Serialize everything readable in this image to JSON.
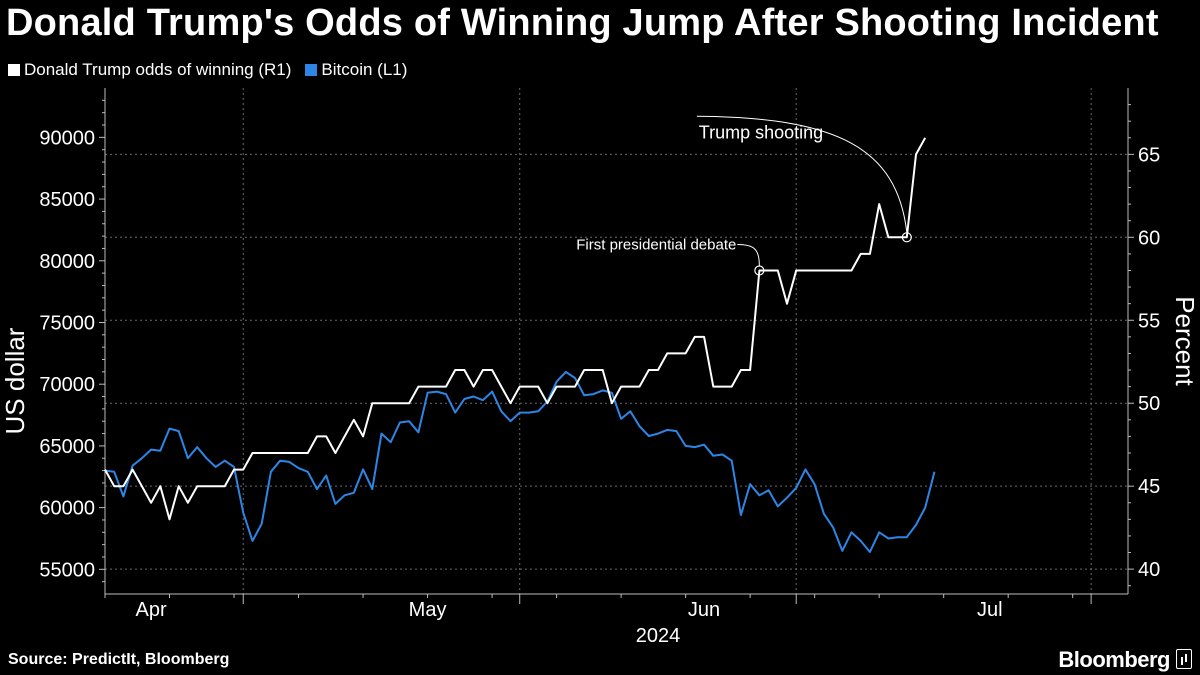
{
  "chart_data": {
    "type": "line",
    "title": "Donald Trump's Odds of Winning Jump After Shooting Incident",
    "legend": [
      {
        "name": "Donald Trump odds of winning (R1)",
        "color": "#ffffff"
      },
      {
        "name": "Bitcoin (L1)",
        "color": "#2d86e6"
      }
    ],
    "xlabel": "2024",
    "x_ticks": [
      "Apr",
      "May",
      "Jun",
      "Jul"
    ],
    "x_tick_days": [
      5,
      35,
      65,
      96
    ],
    "x_month_boundaries": [
      15,
      45,
      75,
      107
    ],
    "x_range": [
      0,
      111
    ],
    "left_axis": {
      "label": "US dollar",
      "ticks": [
        55000,
        60000,
        65000,
        70000,
        75000,
        80000,
        85000,
        90000
      ],
      "range": [
        53000,
        94000
      ]
    },
    "right_axis": {
      "label": "Percent",
      "ticks": [
        40,
        45,
        50,
        55,
        60,
        65
      ],
      "range": [
        38.5,
        69
      ]
    },
    "series": [
      {
        "name": "Bitcoin (L1)",
        "axis": "left",
        "values": [
          [
            0,
            63000
          ],
          [
            1,
            62900
          ],
          [
            2,
            60900
          ],
          [
            3,
            63400
          ],
          [
            4,
            64000
          ],
          [
            5,
            64700
          ],
          [
            6,
            64600
          ],
          [
            7,
            66400
          ],
          [
            8,
            66200
          ],
          [
            9,
            64000
          ],
          [
            10,
            64900
          ],
          [
            11,
            64000
          ],
          [
            12,
            63300
          ],
          [
            13,
            63800
          ],
          [
            14,
            63300
          ],
          [
            15,
            59600
          ],
          [
            16,
            57300
          ],
          [
            17,
            58700
          ],
          [
            18,
            62900
          ],
          [
            19,
            63800
          ],
          [
            20,
            63700
          ],
          [
            21,
            63200
          ],
          [
            22,
            62900
          ],
          [
            23,
            61500
          ],
          [
            24,
            62600
          ],
          [
            25,
            60300
          ],
          [
            26,
            61000
          ],
          [
            27,
            61200
          ],
          [
            28,
            63100
          ],
          [
            29,
            61500
          ],
          [
            30,
            66000
          ],
          [
            31,
            65300
          ],
          [
            32,
            66900
          ],
          [
            33,
            67000
          ],
          [
            34,
            66100
          ],
          [
            35,
            69300
          ],
          [
            36,
            69400
          ],
          [
            37,
            69200
          ],
          [
            38,
            67700
          ],
          [
            39,
            68800
          ],
          [
            40,
            69000
          ],
          [
            41,
            68700
          ],
          [
            42,
            69400
          ],
          [
            43,
            67800
          ],
          [
            44,
            67000
          ],
          [
            45,
            67700
          ],
          [
            46,
            67700
          ],
          [
            47,
            67800
          ],
          [
            48,
            68600
          ],
          [
            49,
            70200
          ],
          [
            50,
            71000
          ],
          [
            51,
            70500
          ],
          [
            52,
            69100
          ],
          [
            53,
            69200
          ],
          [
            54,
            69500
          ],
          [
            55,
            69300
          ],
          [
            56,
            67200
          ],
          [
            57,
            67800
          ],
          [
            58,
            66600
          ],
          [
            59,
            65800
          ],
          [
            60,
            66000
          ],
          [
            61,
            66300
          ],
          [
            62,
            66200
          ],
          [
            63,
            65000
          ],
          [
            64,
            64900
          ],
          [
            65,
            65100
          ],
          [
            66,
            64200
          ],
          [
            67,
            64300
          ],
          [
            68,
            63800
          ],
          [
            69,
            59400
          ],
          [
            70,
            61900
          ],
          [
            71,
            61000
          ],
          [
            72,
            61400
          ],
          [
            73,
            60100
          ],
          [
            74,
            60800
          ],
          [
            75,
            61600
          ],
          [
            76,
            63100
          ],
          [
            77,
            61900
          ],
          [
            78,
            59500
          ],
          [
            79,
            58400
          ],
          [
            80,
            56500
          ],
          [
            81,
            58000
          ],
          [
            82,
            57300
          ],
          [
            83,
            56400
          ],
          [
            84,
            58000
          ],
          [
            85,
            57500
          ],
          [
            86,
            57600
          ],
          [
            87,
            57600
          ],
          [
            88,
            58600
          ],
          [
            89,
            60000
          ],
          [
            90,
            62900
          ]
        ]
      },
      {
        "name": "Donald Trump odds of winning (R1)",
        "axis": "right",
        "values": [
          [
            0,
            46
          ],
          [
            1,
            45
          ],
          [
            2,
            45
          ],
          [
            3,
            46
          ],
          [
            4,
            45
          ],
          [
            5,
            44
          ],
          [
            6,
            45
          ],
          [
            7,
            43
          ],
          [
            8,
            45
          ],
          [
            9,
            44
          ],
          [
            10,
            45
          ],
          [
            11,
            45
          ],
          [
            12,
            45
          ],
          [
            13,
            45
          ],
          [
            14,
            46
          ],
          [
            15,
            46
          ],
          [
            16,
            47
          ],
          [
            17,
            47
          ],
          [
            18,
            47
          ],
          [
            19,
            47
          ],
          [
            20,
            47
          ],
          [
            21,
            47
          ],
          [
            22,
            47
          ],
          [
            23,
            48
          ],
          [
            24,
            48
          ],
          [
            25,
            47
          ],
          [
            26,
            48
          ],
          [
            27,
            49
          ],
          [
            28,
            48
          ],
          [
            29,
            50
          ],
          [
            30,
            50
          ],
          [
            31,
            50
          ],
          [
            32,
            50
          ],
          [
            33,
            50
          ],
          [
            34,
            51
          ],
          [
            35,
            51
          ],
          [
            36,
            51
          ],
          [
            37,
            51
          ],
          [
            38,
            52
          ],
          [
            39,
            52
          ],
          [
            40,
            51
          ],
          [
            41,
            52
          ],
          [
            42,
            52
          ],
          [
            43,
            51
          ],
          [
            44,
            50
          ],
          [
            45,
            51
          ],
          [
            46,
            51
          ],
          [
            47,
            51
          ],
          [
            48,
            50
          ],
          [
            49,
            51
          ],
          [
            50,
            51
          ],
          [
            51,
            51
          ],
          [
            52,
            52
          ],
          [
            53,
            52
          ],
          [
            54,
            52
          ],
          [
            55,
            50
          ],
          [
            56,
            51
          ],
          [
            57,
            51
          ],
          [
            58,
            51
          ],
          [
            59,
            52
          ],
          [
            60,
            52
          ],
          [
            61,
            53
          ],
          [
            62,
            53
          ],
          [
            63,
            53
          ],
          [
            64,
            54
          ],
          [
            65,
            54
          ],
          [
            66,
            51
          ],
          [
            67,
            51
          ],
          [
            68,
            51
          ],
          [
            69,
            52
          ],
          [
            70,
            52
          ],
          [
            71,
            58
          ],
          [
            72,
            58
          ],
          [
            73,
            58
          ],
          [
            74,
            56
          ],
          [
            75,
            58
          ],
          [
            76,
            58
          ],
          [
            77,
            58
          ],
          [
            78,
            58
          ],
          [
            79,
            58
          ],
          [
            80,
            58
          ],
          [
            81,
            58
          ],
          [
            82,
            59
          ],
          [
            83,
            59
          ],
          [
            84,
            62
          ],
          [
            85,
            60
          ],
          [
            86,
            60
          ],
          [
            87,
            60
          ],
          [
            88,
            65
          ],
          [
            89,
            66
          ]
        ]
      }
    ],
    "annotations": [
      {
        "text": "First presidential debate",
        "x": 71,
        "value": 58
      },
      {
        "text": "Trump shooting",
        "x": 87,
        "value": 60
      }
    ],
    "grid": true
  },
  "footer": {
    "source": "Source: PredictIt, Bloomberg",
    "brand": "Bloomberg"
  }
}
